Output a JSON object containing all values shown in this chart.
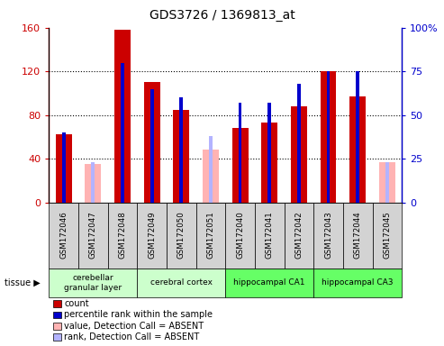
{
  "title": "GDS3726 / 1369813_at",
  "samples": [
    "GSM172046",
    "GSM172047",
    "GSM172048",
    "GSM172049",
    "GSM172050",
    "GSM172051",
    "GSM172040",
    "GSM172041",
    "GSM172042",
    "GSM172043",
    "GSM172044",
    "GSM172045"
  ],
  "count_values": [
    62,
    0,
    158,
    110,
    85,
    0,
    68,
    73,
    88,
    120,
    97,
    0
  ],
  "rank_values": [
    40,
    0,
    80,
    65,
    60,
    0,
    57,
    57,
    68,
    75,
    75,
    0
  ],
  "absent_value_values": [
    0,
    35,
    0,
    0,
    0,
    48,
    0,
    0,
    0,
    0,
    0,
    37
  ],
  "absent_rank_values": [
    0,
    23,
    0,
    0,
    0,
    38,
    0,
    0,
    0,
    0,
    0,
    23
  ],
  "ylim_left": [
    0,
    160
  ],
  "ylim_right": [
    0,
    100
  ],
  "yticks_left": [
    0,
    40,
    80,
    120,
    160
  ],
  "yticks_right": [
    0,
    25,
    50,
    75,
    100
  ],
  "yticklabels_left": [
    "0",
    "40",
    "80",
    "120",
    "160"
  ],
  "yticklabels_right": [
    "0",
    "25",
    "50",
    "75",
    "100%"
  ],
  "color_count": "#cc0000",
  "color_rank": "#0000cc",
  "color_absent_value": "#ffb3b3",
  "color_absent_rank": "#b3b3ff",
  "tissue_groups": [
    {
      "label": "cerebellar\ngranular layer",
      "start": 0,
      "end": 3,
      "color": "#ccffcc"
    },
    {
      "label": "cerebral cortex",
      "start": 3,
      "end": 6,
      "color": "#ccffcc"
    },
    {
      "label": "hippocampal CA1",
      "start": 6,
      "end": 9,
      "color": "#66ff66"
    },
    {
      "label": "hippocampal CA3",
      "start": 9,
      "end": 12,
      "color": "#66ff66"
    }
  ],
  "legend_items": [
    {
      "label": "count",
      "color": "#cc0000"
    },
    {
      "label": "percentile rank within the sample",
      "color": "#0000cc"
    },
    {
      "label": "value, Detection Call = ABSENT",
      "color": "#ffb3b3"
    },
    {
      "label": "rank, Detection Call = ABSENT",
      "color": "#b3b3ff"
    }
  ],
  "bar_width": 0.55,
  "rank_bar_width": 0.12
}
